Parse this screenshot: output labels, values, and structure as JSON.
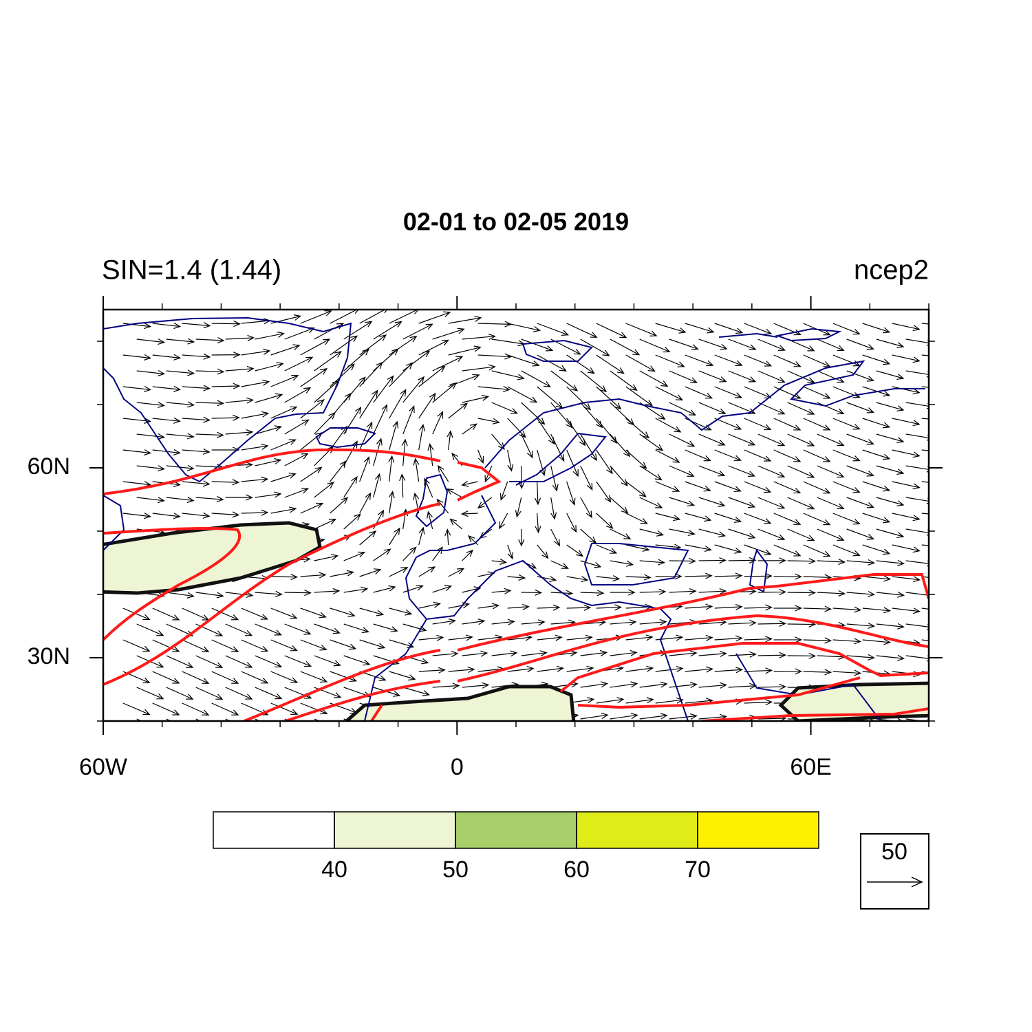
{
  "map": {
    "title": "02-01 to 02-05 2019",
    "left_string": "SIN=1.4 (1.44)",
    "right_string": "ncep2",
    "xlim": [
      -60,
      80
    ],
    "ylim": [
      20,
      85
    ],
    "xticks": [
      {
        "value": -60,
        "label": "60W"
      },
      0,
      {
        "value": 60,
        "label": "60E"
      }
    ],
    "yticks": [
      {
        "value": 30,
        "label": "30N"
      },
      {
        "value": 60,
        "label": "60N"
      }
    ],
    "colorbar": {
      "levels": [
        40,
        50,
        60,
        70
      ],
      "colors": [
        "#ffffff",
        "#eef5d4",
        "#a8d06a",
        "#e0ec18",
        "#fff000"
      ]
    },
    "reference_vector": {
      "magnitude": 50
    }
  }
}
